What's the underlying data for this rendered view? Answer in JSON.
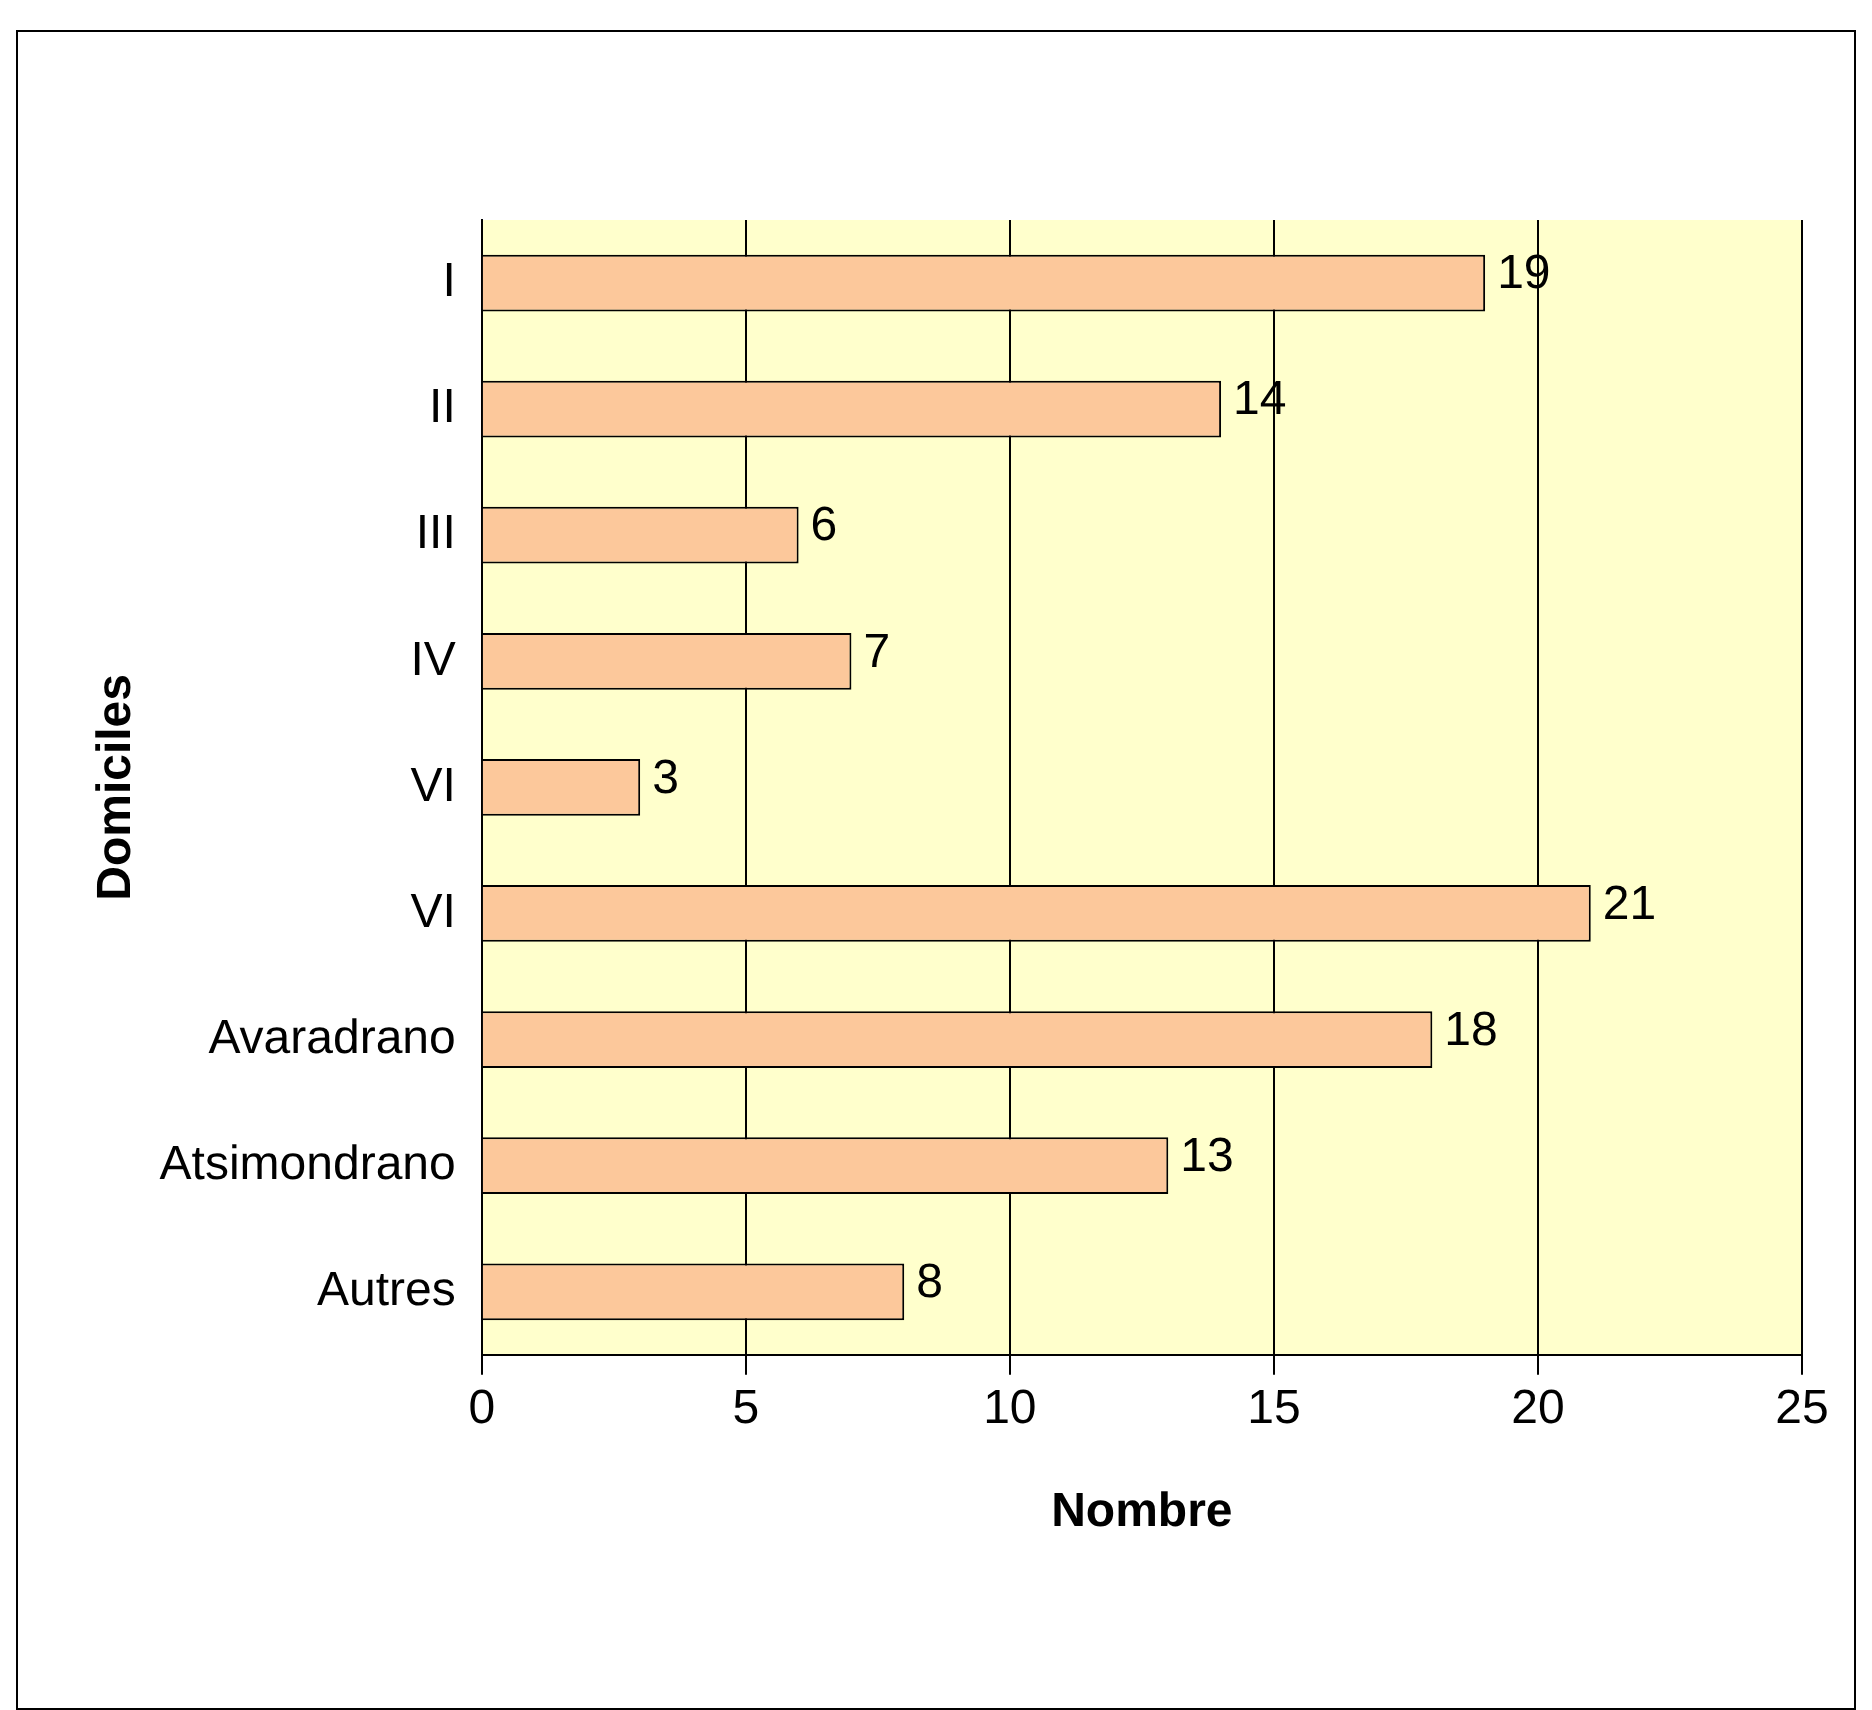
{
  "chart_data": {
    "type": "bar",
    "orientation": "horizontal",
    "xlabel": "Nombre",
    "ylabel": "Domiciles",
    "categories": [
      "I",
      "II",
      "III",
      "IV",
      "VI",
      "VI",
      "Avaradrano",
      "Atsimondrano",
      "Autres"
    ],
    "values": [
      19,
      14,
      6,
      7,
      3,
      21,
      18,
      13,
      8
    ],
    "color": "#fcc89b",
    "xlim": [
      0,
      25
    ],
    "xticks": [
      0,
      5,
      10,
      15,
      20,
      25
    ],
    "grid": "x",
    "data_labels": true,
    "legend": false
  }
}
